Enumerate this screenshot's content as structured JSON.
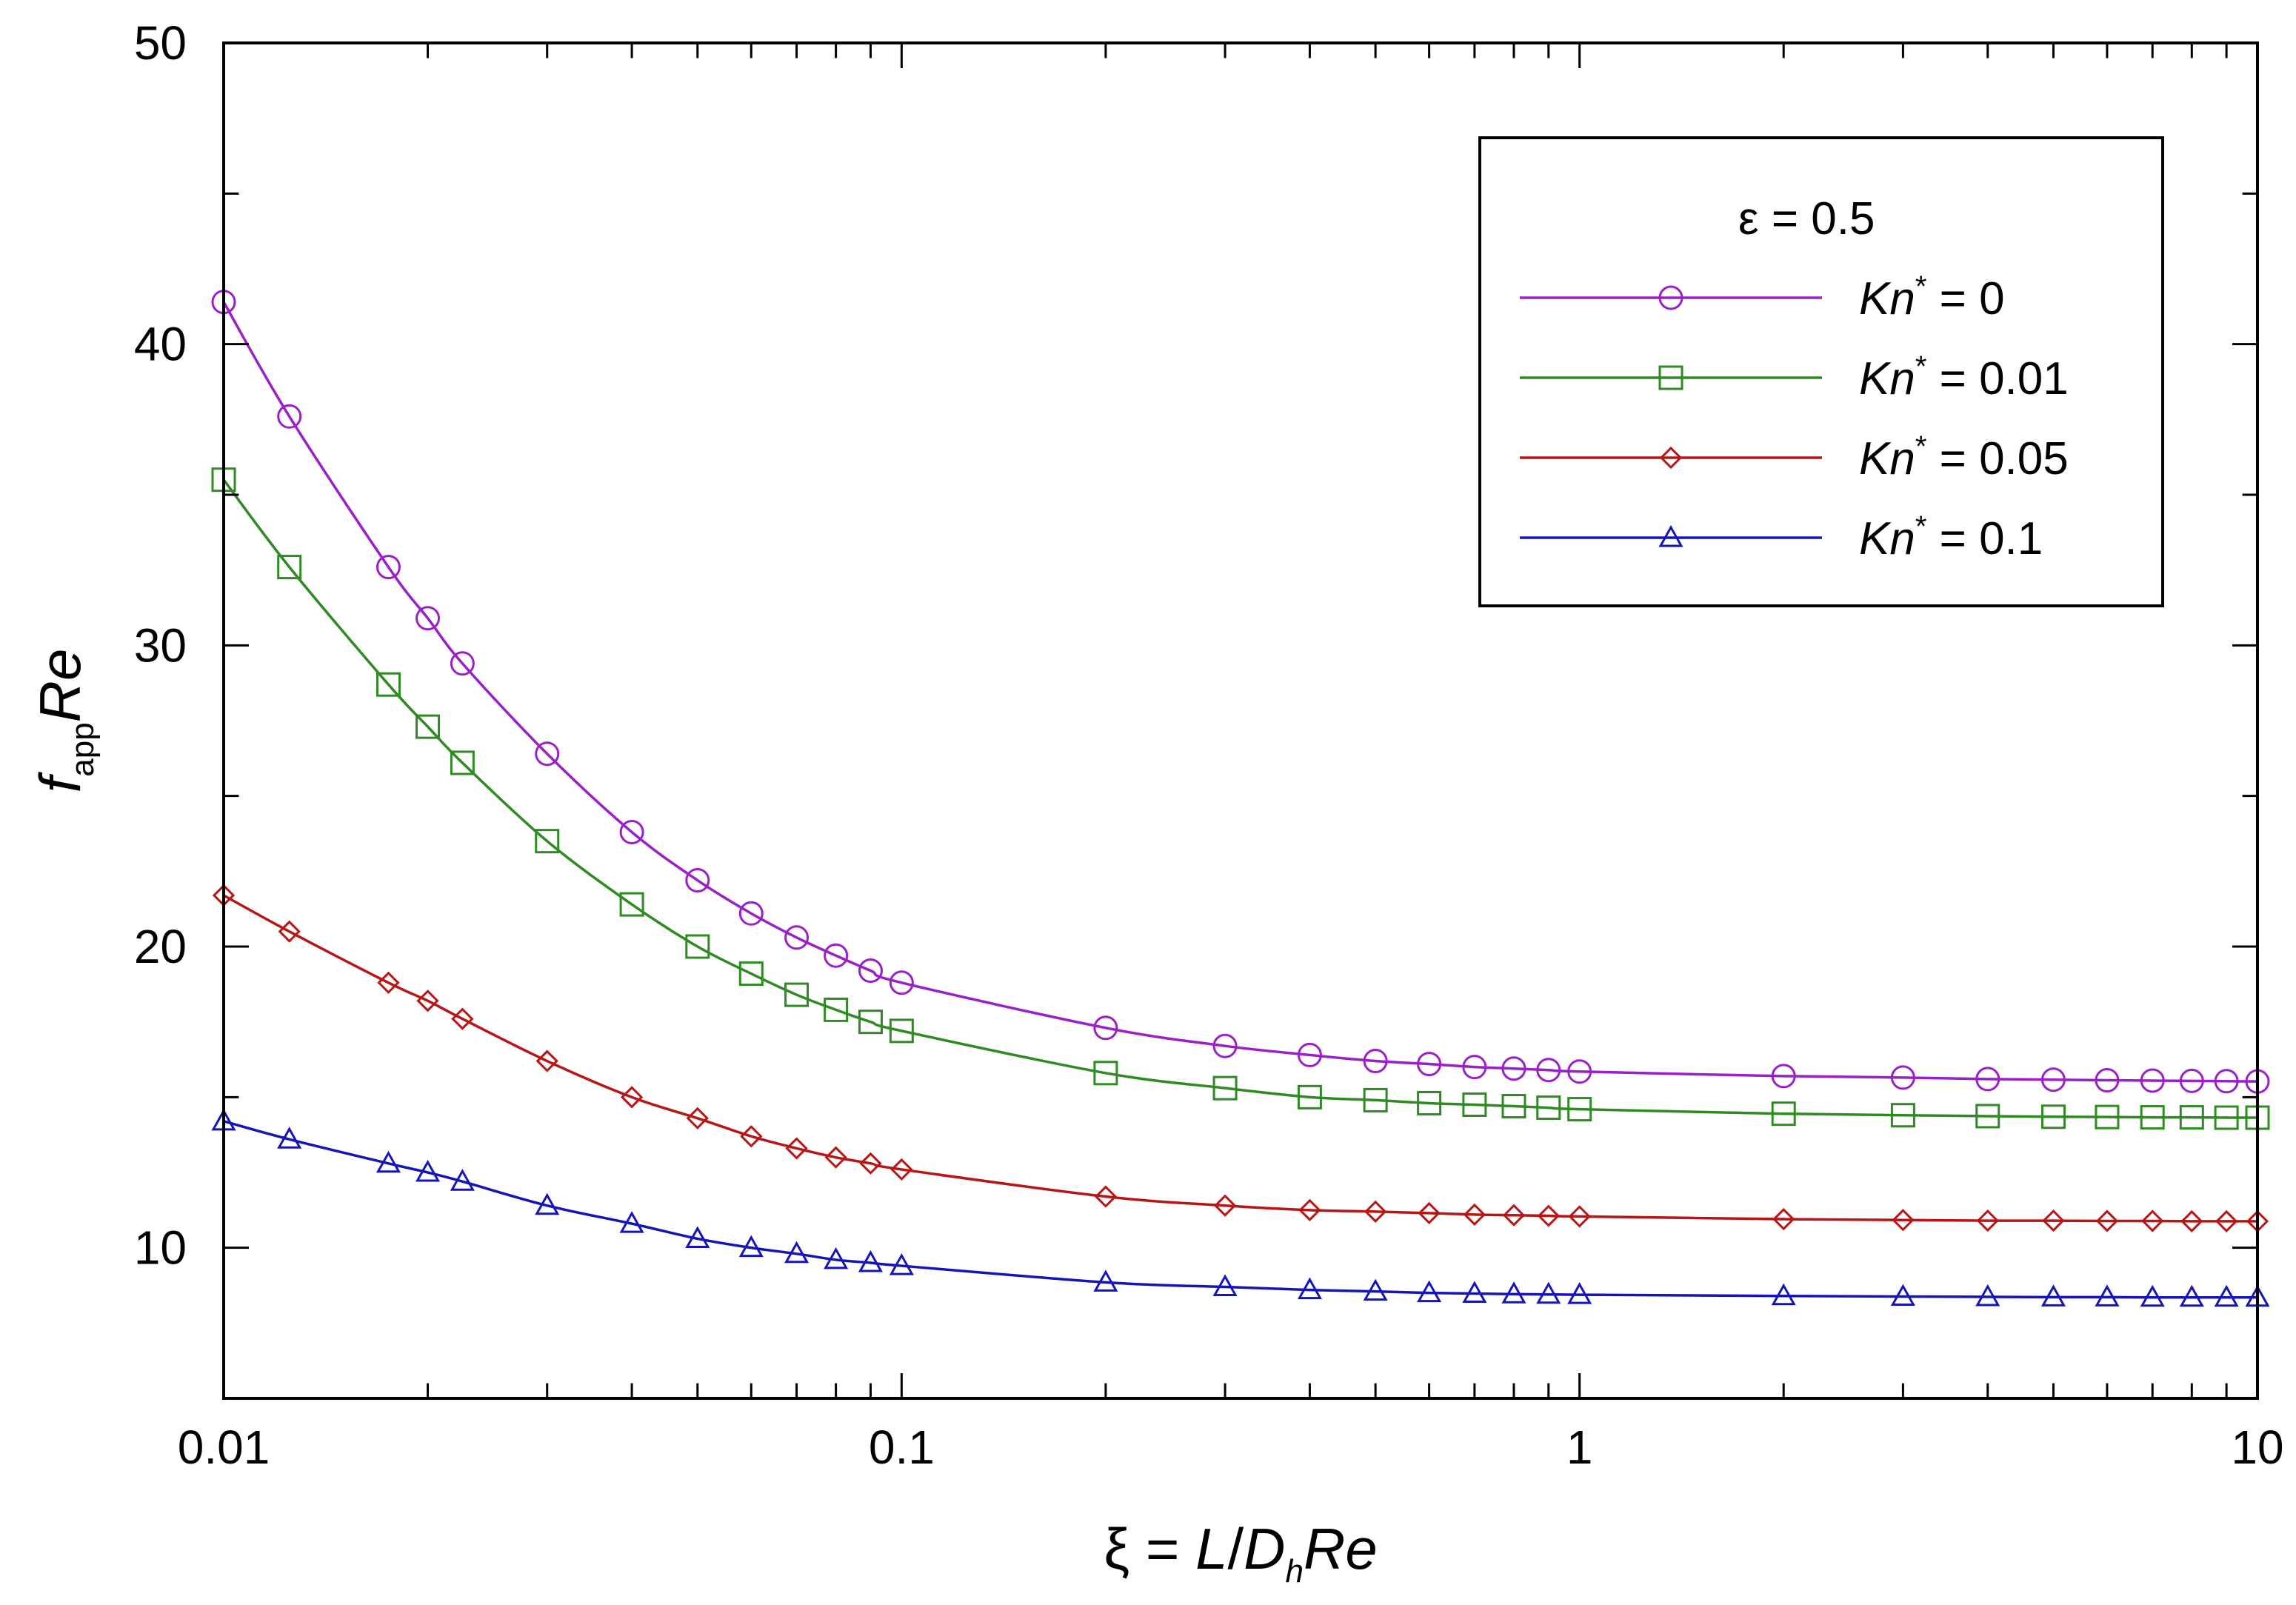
{
  "chart_data": {
    "type": "line",
    "xscale": "log",
    "xlim": [
      0.01,
      10
    ],
    "ylim": [
      5,
      50
    ],
    "xticks": [
      0.01,
      0.1,
      1,
      10
    ],
    "xtick_labels": [
      "0.01",
      "0.1",
      "1",
      "10"
    ],
    "yticks": [
      10,
      20,
      30,
      40,
      50
    ],
    "ytick_labels": [
      "10",
      "20",
      "30",
      "40",
      "50"
    ],
    "xlabel": {
      "prefix": "ξ = ",
      "L": "L",
      "slash": "/",
      "D": "D",
      "D_sub": "h",
      "Re": "Re"
    },
    "ylabel": {
      "f": "f",
      "sub": "app",
      "Re": "Re"
    },
    "legend": {
      "header": "ε = 0.5",
      "placement": "top-right",
      "kn_symbol": "Kn",
      "kn_sup": "*",
      "equals": " = "
    },
    "x": [
      0.01,
      0.0125,
      0.0175,
      0.02,
      0.0225,
      0.03,
      0.04,
      0.05,
      0.06,
      0.07,
      0.08,
      0.09,
      0.1,
      0.2,
      0.3,
      0.4,
      0.5,
      0.6,
      0.7,
      0.8,
      0.9,
      1,
      2,
      3,
      4,
      5,
      6,
      7,
      8,
      9,
      10
    ],
    "series": [
      {
        "name": "Kn* = 0",
        "kn_value": "0",
        "marker": "circle",
        "color": "#9B1FC9",
        "values": [
          41.4,
          37.6,
          32.6,
          30.9,
          29.4,
          26.4,
          23.8,
          22.2,
          21.1,
          20.3,
          19.7,
          19.2,
          18.8,
          17.3,
          16.7,
          16.4,
          16.2,
          16.1,
          16.0,
          15.95,
          15.9,
          15.85,
          15.7,
          15.65,
          15.6,
          15.58,
          15.56,
          15.55,
          15.54,
          15.53,
          15.52
        ]
      },
      {
        "name": "Kn* = 0.01",
        "kn_value": "0.01",
        "marker": "square",
        "color": "#2E8B22",
        "values": [
          35.5,
          32.6,
          28.7,
          27.3,
          26.1,
          23.5,
          21.4,
          20.0,
          19.1,
          18.4,
          17.9,
          17.5,
          17.2,
          15.8,
          15.3,
          15.0,
          14.9,
          14.8,
          14.75,
          14.7,
          14.65,
          14.6,
          14.45,
          14.4,
          14.37,
          14.35,
          14.34,
          14.33,
          14.33,
          14.32,
          14.32
        ]
      },
      {
        "name": "Kn* = 0.05",
        "kn_value": "0.05",
        "marker": "diamond",
        "color": "#B81515",
        "values": [
          21.7,
          20.5,
          18.8,
          18.2,
          17.6,
          16.2,
          15.0,
          14.3,
          13.7,
          13.3,
          13.0,
          12.8,
          12.6,
          11.7,
          11.4,
          11.25,
          11.2,
          11.15,
          11.1,
          11.08,
          11.06,
          11.04,
          10.95,
          10.92,
          10.9,
          10.9,
          10.89,
          10.89,
          10.88,
          10.88,
          10.88
        ]
      },
      {
        "name": "Kn* = 0.1",
        "kn_value": "0.1",
        "marker": "triangle",
        "color": "#1414B8",
        "values": [
          14.2,
          13.6,
          12.8,
          12.5,
          12.2,
          11.4,
          10.8,
          10.3,
          10.0,
          9.8,
          9.6,
          9.5,
          9.4,
          8.85,
          8.7,
          8.6,
          8.55,
          8.5,
          8.48,
          8.46,
          8.45,
          8.44,
          8.4,
          8.38,
          8.37,
          8.36,
          8.36,
          8.35,
          8.35,
          8.35,
          8.35
        ]
      }
    ]
  }
}
